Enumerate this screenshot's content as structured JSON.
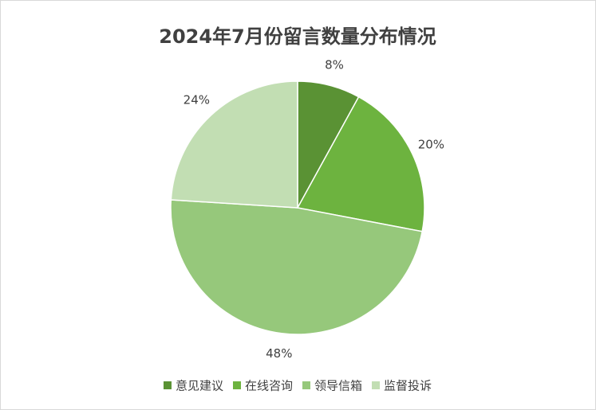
{
  "chart_data": {
    "type": "pie",
    "title": "2024年7月份留言数量分布情况",
    "categories": [
      "意见建议",
      "在线咨询",
      "领导信箱",
      "监督投诉"
    ],
    "values": [
      8,
      20,
      48,
      24
    ],
    "value_labels": [
      "8%",
      "20%",
      "48%",
      "24%"
    ],
    "colors": [
      "#5a9234",
      "#6db33f",
      "#96c87b",
      "#c2deb3"
    ],
    "legend": "bottom"
  }
}
